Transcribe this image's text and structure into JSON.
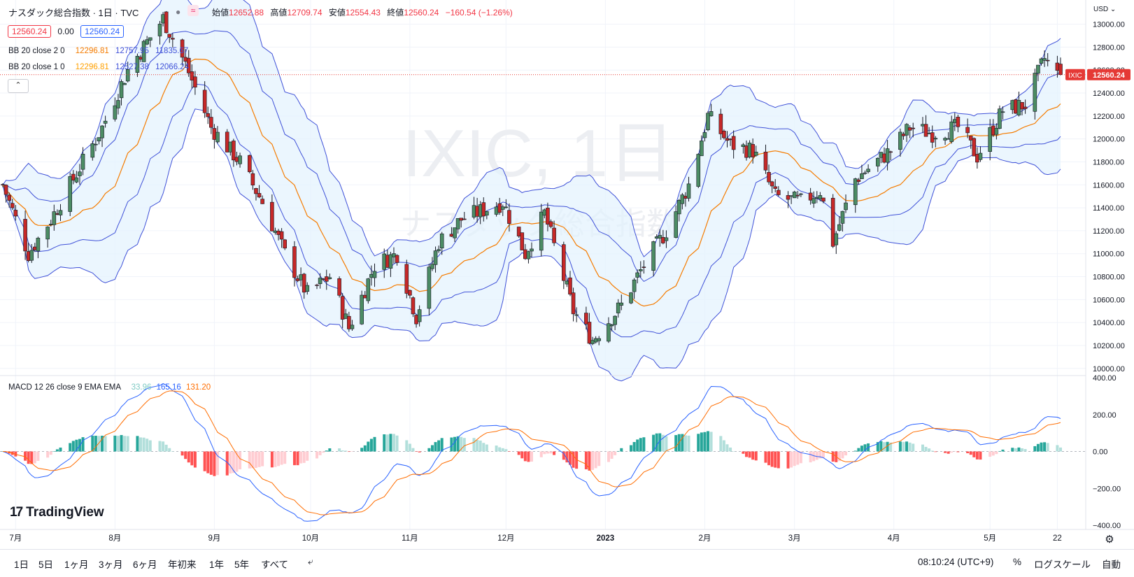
{
  "header": {
    "symbol_title": "ナスダック総合指数 · 1日 · TVC",
    "ohlc": [
      {
        "label": "始値",
        "value": "12652.88"
      },
      {
        "label": "高値",
        "value": "12709.74"
      },
      {
        "label": "安値",
        "value": "12554.43"
      },
      {
        "label": "終値",
        "value": "12560.24"
      }
    ],
    "change": "−160.54 (−1.26%)",
    "bid": "12560.24",
    "spread": "0.00",
    "ask": "12560.24"
  },
  "indicators": {
    "bb2": {
      "label": "BB 20 close 2 0",
      "basis": "12296.81",
      "upper": "12757.95",
      "lower": "11835.67"
    },
    "bb1": {
      "label": "BB 20 close 1 0",
      "basis": "12296.81",
      "upper": "12527.38",
      "lower": "12066.24"
    },
    "macd": {
      "label": "MACD 12 26 close 9 EMA EMA",
      "hist": "33.96",
      "macd": "165.16",
      "signal": "131.20"
    }
  },
  "watermark": {
    "line1": "IXIC, 1日",
    "line2": "ナスダック総合指数"
  },
  "price_axis": {
    "currency": "USD",
    "ticks": [
      "13000.00",
      "12800.00",
      "12600.00",
      "12400.00",
      "12200.00",
      "12000.00",
      "11800.00",
      "11600.00",
      "11400.00",
      "11200.00",
      "11000.00",
      "10800.00",
      "10600.00",
      "10400.00",
      "10200.00",
      "10000.00"
    ],
    "last_price_tag": "12560.24",
    "symbol_tag": "IXIC"
  },
  "macd_axis": {
    "ticks": [
      "400.00",
      "200.00",
      "0.00",
      "−200.00",
      "−400.00"
    ]
  },
  "time_axis": {
    "labels": [
      "7月",
      "8月",
      "9月",
      "10月",
      "11月",
      "12月",
      "2023",
      "2月",
      "3月",
      "4月",
      "5月",
      "22"
    ]
  },
  "branding": {
    "logo_text": "TradingView"
  },
  "bottom_bar": {
    "timeframes": [
      "1日",
      "5日",
      "1ヶ月",
      "3ヶ月",
      "6ヶ月",
      "年初来",
      "1年",
      "5年",
      "すべて"
    ],
    "clock": "08:10:24 (UTC+9)",
    "percent": "%",
    "log_scale": "ログスケール",
    "auto": "自動"
  },
  "colors": {
    "up": "#26a69a",
    "up_body": "#4c8c64",
    "down": "#ef5350",
    "down_body": "#c62828",
    "bb_basis": "#f57c00",
    "bb_band": "#3f51d8",
    "bb_fill": "#e3f2fd",
    "macd_line": "#2962ff",
    "signal_line": "#ff6d00",
    "hist_up_strong": "#26a69a",
    "hist_up_weak": "#b2dfdb",
    "hist_down_strong": "#ff5252",
    "hist_down_weak": "#ffcdd2"
  },
  "chart_data": {
    "type": "candlestick",
    "title": "ナスダック総合指数 · 1日 · TVC",
    "ylim": [
      9950,
      13150
    ],
    "x_range": [
      "2022-06-27",
      "2023-05-23"
    ],
    "close_path_sampled": [
      {
        "x": "2022-06-27",
        "y": 11600
      },
      {
        "x": "2022-07-05",
        "y": 11000
      },
      {
        "x": "2022-07-12",
        "y": 11300
      },
      {
        "x": "2022-07-20",
        "y": 11700
      },
      {
        "x": "2022-07-28",
        "y": 12100
      },
      {
        "x": "2022-08-05",
        "y": 12600
      },
      {
        "x": "2022-08-16",
        "y": 13050
      },
      {
        "x": "2022-08-23",
        "y": 12650
      },
      {
        "x": "2022-08-31",
        "y": 12100
      },
      {
        "x": "2022-09-09",
        "y": 11800
      },
      {
        "x": "2022-09-16",
        "y": 11450
      },
      {
        "x": "2022-09-23",
        "y": 11000
      },
      {
        "x": "2022-09-30",
        "y": 10650
      },
      {
        "x": "2022-10-07",
        "y": 10800
      },
      {
        "x": "2022-10-13",
        "y": 10350
      },
      {
        "x": "2022-10-21",
        "y": 10900
      },
      {
        "x": "2022-10-28",
        "y": 11000
      },
      {
        "x": "2022-11-03",
        "y": 10450
      },
      {
        "x": "2022-11-10",
        "y": 11100
      },
      {
        "x": "2022-11-17",
        "y": 11300
      },
      {
        "x": "2022-11-30",
        "y": 11450
      },
      {
        "x": "2022-12-07",
        "y": 11000
      },
      {
        "x": "2022-12-13",
        "y": 11350
      },
      {
        "x": "2022-12-22",
        "y": 10500
      },
      {
        "x": "2022-12-28",
        "y": 10250
      },
      {
        "x": "2023-01-06",
        "y": 10550
      },
      {
        "x": "2023-01-13",
        "y": 10900
      },
      {
        "x": "2023-01-20",
        "y": 11200
      },
      {
        "x": "2023-01-27",
        "y": 11600
      },
      {
        "x": "2023-02-02",
        "y": 12200
      },
      {
        "x": "2023-02-09",
        "y": 11950
      },
      {
        "x": "2023-02-16",
        "y": 11900
      },
      {
        "x": "2023-02-23",
        "y": 11500
      },
      {
        "x": "2023-03-03",
        "y": 11450
      },
      {
        "x": "2023-03-09",
        "y": 11550
      },
      {
        "x": "2023-03-13",
        "y": 11100
      },
      {
        "x": "2023-03-20",
        "y": 11650
      },
      {
        "x": "2023-03-31",
        "y": 11900
      },
      {
        "x": "2023-04-06",
        "y": 12100
      },
      {
        "x": "2023-04-13",
        "y": 12050
      },
      {
        "x": "2023-04-21",
        "y": 12100
      },
      {
        "x": "2023-04-27",
        "y": 11850
      },
      {
        "x": "2023-05-05",
        "y": 12250
      },
      {
        "x": "2023-05-12",
        "y": 12300
      },
      {
        "x": "2023-05-18",
        "y": 12700
      },
      {
        "x": "2023-05-22",
        "y": 12560
      }
    ],
    "last_bar": {
      "open": 12652.88,
      "high": 12709.74,
      "low": 12554.43,
      "close": 12560.24
    },
    "bollinger_bands": {
      "period": 20,
      "basis": 12296.81,
      "upper_2sd": 12757.95,
      "lower_2sd": 11835.67,
      "upper_1sd": 12527.38,
      "lower_1sd": 12066.24
    },
    "macd": {
      "fast": 12,
      "slow": 26,
      "signal": 9,
      "macd": 165.16,
      "signal_value": 131.2,
      "histogram": 33.96,
      "ylim": [
        -400,
        400
      ]
    }
  }
}
